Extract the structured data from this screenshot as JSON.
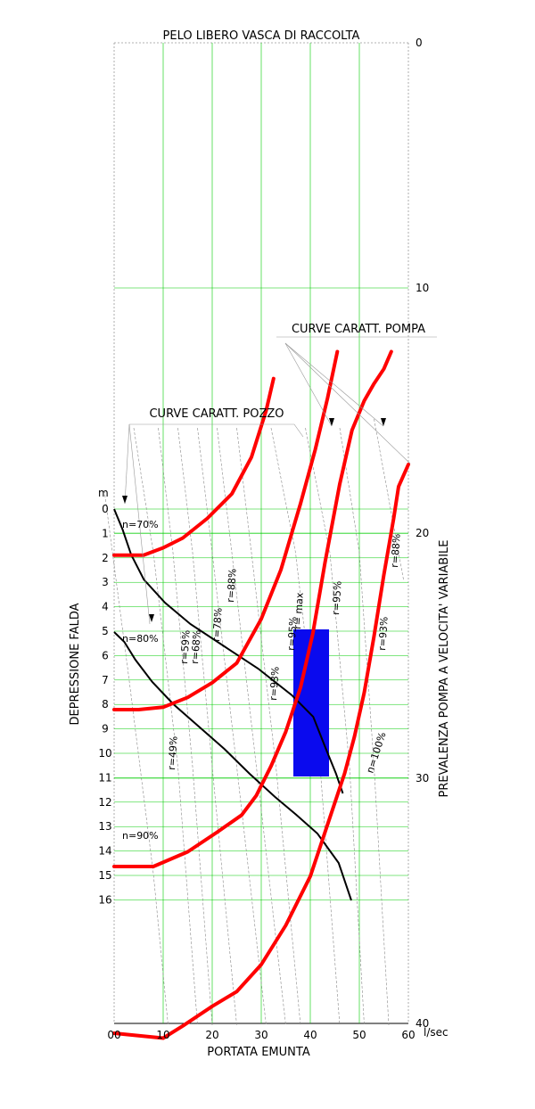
{
  "chart_data": {
    "type": "line",
    "title": "PELO LIBERO VASCA DI RACCOLTA",
    "xlabel": "PORTATA EMUNTA",
    "xunit": "l/sec",
    "ylabel_left": "DEPRESSIONE FALDA",
    "yunit_left": "m",
    "ylabel_right": "PREVALENZA POMPA A VELOCITA' VARIABILE",
    "xlim": [
      0,
      60
    ],
    "ylim_right": [
      0,
      40
    ],
    "ylim_left": [
      0,
      16
    ],
    "x_ticks": [
      "00",
      "10",
      "20",
      "30",
      "40",
      "50",
      "60"
    ],
    "right_ticks": [
      "0",
      "10",
      "20",
      "30",
      "40"
    ],
    "left_ticks": [
      "0",
      "1",
      "2",
      "3",
      "4",
      "5",
      "6",
      "7",
      "8",
      "9",
      "10",
      "11",
      "12",
      "13",
      "14",
      "15",
      "16"
    ],
    "grid": true,
    "callouts": {
      "pump": "CURVE CARATT. POMPA",
      "well": "CURVE CARATT. POZZO"
    },
    "pump_curves": [
      {
        "label": "n=70%",
        "points": [
          [
            0,
            20.9
          ],
          [
            3,
            20.9
          ],
          [
            6,
            20.9
          ],
          [
            10,
            20.6
          ],
          [
            14,
            20.2
          ],
          [
            19,
            19.4
          ],
          [
            24,
            18.4
          ],
          [
            28,
            16.9
          ],
          [
            31,
            15.0
          ],
          [
            32.5,
            13.7
          ]
        ]
      },
      {
        "label": "n=80%",
        "points": [
          [
            0,
            27.2
          ],
          [
            5,
            27.2
          ],
          [
            10,
            27.1
          ],
          [
            15,
            26.7
          ],
          [
            20,
            26.1
          ],
          [
            25,
            25.3
          ],
          [
            30,
            23.5
          ],
          [
            34,
            21.5
          ],
          [
            38,
            18.8
          ],
          [
            41,
            16.6
          ],
          [
            43.5,
            14.5
          ],
          [
            45.5,
            12.6
          ]
        ]
      },
      {
        "label": "n=90%",
        "points": [
          [
            0,
            33.6
          ],
          [
            8,
            33.6
          ],
          [
            15,
            33.0
          ],
          [
            21,
            32.2
          ],
          [
            26,
            31.5
          ],
          [
            29,
            30.7
          ],
          [
            32,
            29.5
          ],
          [
            35,
            28.1
          ],
          [
            38,
            26.3
          ],
          [
            40.5,
            24.1
          ],
          [
            43,
            21.2
          ],
          [
            46,
            18.0
          ],
          [
            48.5,
            15.8
          ],
          [
            51,
            14.6
          ],
          [
            53,
            13.9
          ],
          [
            55,
            13.3
          ],
          [
            56.5,
            12.6
          ]
        ]
      },
      {
        "label": "n=100%",
        "points": [
          [
            0,
            40.4
          ],
          [
            10,
            40.6
          ],
          [
            14,
            40.1
          ],
          [
            20,
            39.3
          ],
          [
            25,
            38.7
          ],
          [
            30,
            37.6
          ],
          [
            35,
            36.0
          ],
          [
            40,
            34.0
          ],
          [
            44,
            31.6
          ],
          [
            47,
            29.8
          ],
          [
            49,
            28.3
          ],
          [
            51,
            26.5
          ],
          [
            53,
            24.2
          ],
          [
            55,
            21.7
          ],
          [
            57,
            19.4
          ],
          [
            58,
            18.1
          ],
          [
            60,
            17.2
          ]
        ]
      }
    ],
    "well_curves": [
      {
        "points": [
          [
            0,
            20.0
          ],
          [
            5,
            20.8
          ],
          [
            10,
            21.7
          ],
          [
            20,
            23.6
          ],
          [
            30,
            25.5
          ],
          [
            40,
            27.2
          ],
          [
            45,
            28.4
          ],
          [
            48,
            29.6
          ],
          [
            50,
            30.8
          ],
          [
            51,
            31.9
          ]
        ]
      },
      {
        "points": [
          [
            0,
            26.4
          ],
          [
            5,
            26.9
          ],
          [
            10,
            27.6
          ],
          [
            20,
            29.4
          ],
          [
            30,
            31.7
          ],
          [
            38,
            32.9
          ],
          [
            43,
            33.3
          ],
          [
            47,
            34.2
          ],
          [
            51,
            35.5
          ],
          [
            52,
            37.6
          ]
        ]
      }
    ],
    "efficiency_labels": [
      "r=49%",
      "r=59%",
      "r=68%",
      "r=78%",
      "r=88%",
      "r=93%",
      "r=95%",
      "r= max",
      "r=95%",
      "r=93%",
      "r=88%"
    ],
    "operating_region": {
      "xmin": 37,
      "xmax": 43,
      "ymin": 6.0,
      "ymax": 10.9,
      "color": "#0a0aee"
    },
    "colors": {
      "pump": "#ff0000",
      "well": "#000000",
      "grid": "#00cc00",
      "region": "#0a0aee",
      "iso": "#888888"
    }
  }
}
